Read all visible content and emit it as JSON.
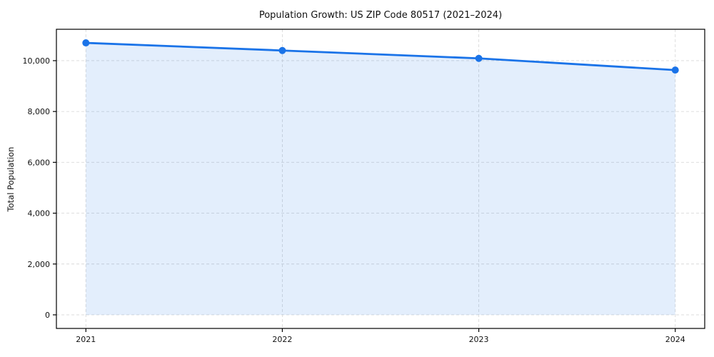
{
  "chart_data": {
    "type": "line",
    "title": "Population Growth: US ZIP Code 80517 (2021–2024)",
    "xlabel": "",
    "ylabel": "Total Population",
    "x": [
      2021,
      2022,
      2023,
      2024
    ],
    "series": [
      {
        "name": "Total Population",
        "values": [
          10700,
          10400,
          10090,
          9630
        ]
      }
    ],
    "xticks": [
      2021,
      2022,
      2023,
      2024
    ],
    "yticks": [
      0,
      2000,
      4000,
      6000,
      8000,
      10000
    ],
    "xlim": [
      2020.85,
      2024.15
    ],
    "ylim": [
      -535,
      11235
    ],
    "grid": true,
    "legend": false,
    "fill_to_zero": true,
    "colors": {
      "line": "#1a73e8",
      "marker": "#1a73e8",
      "fill": "#1a73e8",
      "fill_opacity": 0.12,
      "grid": "#d9d9d9",
      "axis": "#000000",
      "text": "#111111"
    }
  }
}
